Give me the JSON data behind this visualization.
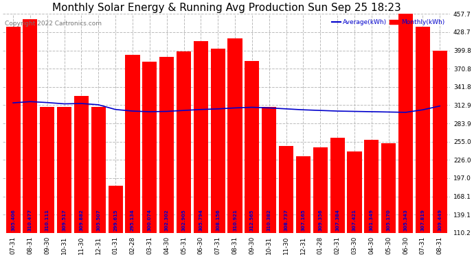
{
  "title": "Monthly Solar Energy & Running Avg Production Sun Sep 25 18:23",
  "copyright": "Copyright 2022 Cartronics.com",
  "legend_avg": "Average(kWh)",
  "legend_monthly": "Monthly(kWh)",
  "categories": [
    "07-31",
    "08-31",
    "09-30",
    "10-31",
    "11-30",
    "12-31",
    "01-31",
    "02-28",
    "03-31",
    "04-30",
    "05-31",
    "06-30",
    "07-31",
    "08-31",
    "09-30",
    "10-31",
    "11-30",
    "12-31",
    "01-28",
    "02-31",
    "03-30",
    "04-30",
    "05-30",
    "06-30",
    "07-31",
    "08-31"
  ],
  "monthly_values": [
    437.0,
    449.0,
    310.0,
    310.0,
    328.0,
    310.0,
    185.0,
    393.0,
    382.0,
    390.0,
    398.0,
    415.0,
    403.0,
    419.0,
    383.0,
    310.0,
    248.0,
    232.0,
    246.0,
    261.0,
    239.0,
    258.0,
    252.0,
    466.0,
    437.0,
    399.0
  ],
  "avg_values": [
    316.5,
    318.5,
    317.0,
    315.0,
    315.5,
    313.5,
    306.0,
    303.5,
    302.5,
    303.0,
    304.5,
    306.0,
    307.0,
    308.5,
    309.5,
    308.5,
    307.0,
    305.5,
    304.5,
    303.5,
    303.0,
    302.5,
    302.0,
    301.5,
    305.5,
    311.5
  ],
  "bar_value_labels": [
    "305.406",
    "310.477",
    "310.111",
    "309.517",
    "309.882",
    "305.507",
    "299.615",
    "295.134",
    "300.074",
    "302.302",
    "302.905",
    "305.794",
    "308.156",
    "310.921",
    "312.565",
    "310.382",
    "308.737",
    "307.165",
    "309.356",
    "307.384",
    "307.421",
    "301.349",
    "305.170",
    "305.343",
    "307.819",
    "309.449"
  ],
  "ylim_min": 110.2,
  "ylim_max": 457.7,
  "yticks": [
    110.2,
    139.1,
    168.1,
    197.0,
    226.0,
    255.0,
    283.9,
    312.9,
    341.8,
    370.8,
    399.8,
    428.7,
    457.7
  ],
  "bar_color": "#ff0000",
  "avg_line_color": "#0000cc",
  "title_color": "#000000",
  "bg_color": "#ffffff",
  "plot_bg_color": "#ffffff",
  "grid_color": "#bbbbbb",
  "bar_label_color": "#0000cc",
  "title_fontsize": 11,
  "axis_fontsize": 6.5,
  "label_fontsize": 5.0,
  "copyright_fontsize": 6.5
}
